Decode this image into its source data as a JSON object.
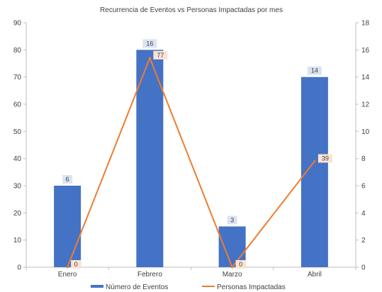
{
  "chart_data": {
    "type": "bar",
    "title": "Recurrencia de Eventos  vs Personas Impactadas por mes",
    "categories": [
      "Enero",
      "Febrero",
      "Marzo",
      "Abril"
    ],
    "series": [
      {
        "name": "Número de Eventos",
        "kind": "bar",
        "axis": "right",
        "color": "#4472C4",
        "values": [
          6,
          16,
          3,
          14
        ],
        "data_labels": [
          "6",
          "16",
          "3",
          "14"
        ]
      },
      {
        "name": "Personas Impactadas",
        "kind": "line",
        "axis": "left",
        "color": "#ED7D31",
        "values": [
          0,
          77,
          0,
          39
        ],
        "data_labels": [
          "0",
          "77",
          "0",
          "39"
        ]
      }
    ],
    "y_left": {
      "min": 0,
      "max": 90,
      "step": 10,
      "ticks": [
        "0",
        "10",
        "20",
        "30",
        "40",
        "50",
        "60",
        "70",
        "80",
        "90"
      ]
    },
    "y_right": {
      "min": 0,
      "max": 18,
      "step": 2,
      "ticks": [
        "0",
        "2",
        "4",
        "6",
        "8",
        "10",
        "12",
        "14",
        "16",
        "18"
      ]
    },
    "grid": false,
    "legend_position": "bottom"
  }
}
